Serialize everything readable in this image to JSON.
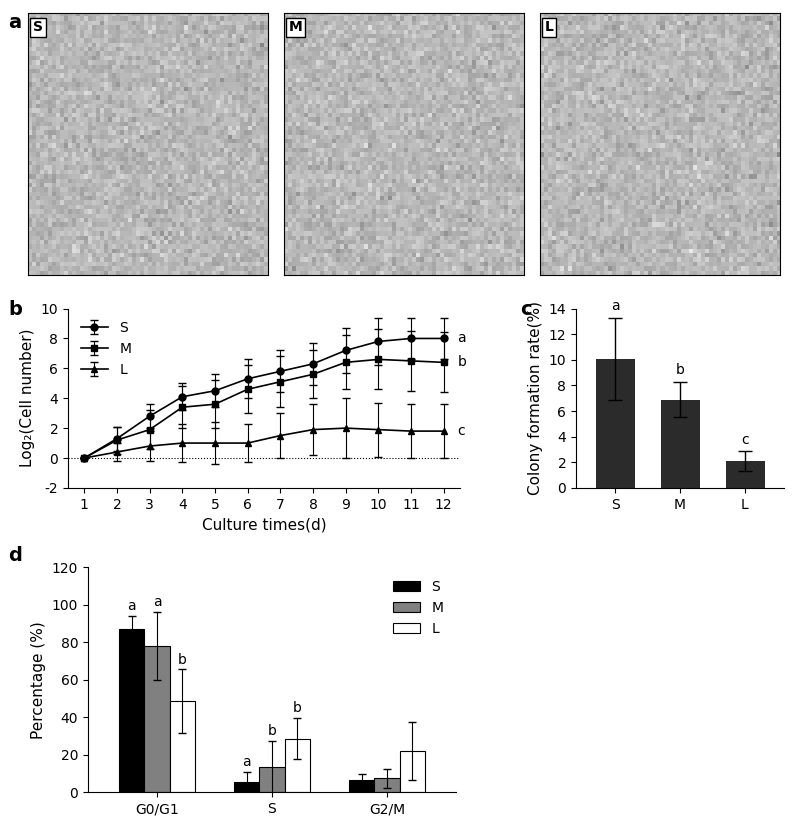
{
  "chart_data": [
    {
      "type": "image",
      "panel": "a",
      "images": [
        "S",
        "M",
        "L"
      ]
    },
    {
      "type": "line",
      "panel": "b",
      "x_label": "Culture times(d)",
      "y_label": "Log₂(Cell number)",
      "x": [
        1,
        2,
        3,
        4,
        5,
        6,
        7,
        8,
        9,
        10,
        11,
        12
      ],
      "series": [
        {
          "name": "S",
          "color": "#000000",
          "marker": "o",
          "annotation": "a",
          "values": [
            0,
            1.3,
            2.8,
            4.1,
            4.5,
            5.3,
            5.8,
            6.3,
            7.2,
            7.8,
            8.0,
            8.0
          ],
          "errors": [
            0,
            0.8,
            0.8,
            0.9,
            1.1,
            1.3,
            1.4,
            1.4,
            1.5,
            1.6,
            1.4,
            1.4
          ]
        },
        {
          "name": "M",
          "color": "#000000",
          "marker": "s",
          "annotation": "b",
          "values": [
            0,
            1.2,
            1.9,
            3.4,
            3.6,
            4.6,
            5.1,
            5.6,
            6.4,
            6.6,
            6.5,
            6.4
          ],
          "errors": [
            0,
            0.9,
            1.3,
            1.4,
            1.6,
            1.6,
            1.7,
            1.6,
            1.8,
            2.0,
            2.0,
            2.0
          ]
        },
        {
          "name": "L",
          "color": "#000000",
          "marker": "^",
          "annotation": "c",
          "values": [
            0,
            0.4,
            0.8,
            1.0,
            1.0,
            1.0,
            1.5,
            1.9,
            2.0,
            1.9,
            1.8,
            1.8
          ],
          "errors": [
            0,
            0.6,
            1.0,
            1.3,
            1.4,
            1.3,
            1.5,
            1.7,
            2.0,
            1.8,
            1.8,
            1.8
          ]
        }
      ],
      "xlim": [
        0.5,
        12.5
      ],
      "xticks": [
        1,
        2,
        3,
        4,
        5,
        6,
        7,
        8,
        9,
        10,
        11,
        12
      ],
      "ylim": [
        -2,
        10
      ],
      "yticks": [
        -2,
        0,
        2,
        4,
        6,
        8,
        10
      ],
      "legend": "upper left"
    },
    {
      "type": "bar",
      "panel": "c",
      "y_label": "Colony formation rate(%)",
      "categories": [
        "S",
        "M",
        "L"
      ],
      "values": [
        10.1,
        6.9,
        2.1
      ],
      "errors": [
        3.2,
        1.4,
        0.8
      ],
      "annotations": [
        "a",
        "b",
        "c"
      ],
      "color": "#2b2b2b",
      "ylim": [
        0,
        14
      ],
      "yticks": [
        0,
        2,
        4,
        6,
        8,
        10,
        12,
        14
      ]
    },
    {
      "type": "grouped_bar",
      "panel": "d",
      "y_label": "Percentage (%)",
      "categories": [
        "G0/G1",
        "S",
        "G2/M"
      ],
      "series": [
        {
          "name": "S",
          "color": "#000000",
          "values": [
            87,
            5.5,
            6.5
          ],
          "errors": [
            7,
            5.5,
            3
          ],
          "annotations": [
            "a",
            "a",
            null
          ]
        },
        {
          "name": "M",
          "color": "#808080",
          "values": [
            78,
            13.5,
            7.5
          ],
          "errors": [
            18,
            14,
            5
          ],
          "annotations": [
            "a",
            "b",
            null
          ]
        },
        {
          "name": "L",
          "color": "#ffffff",
          "values": [
            48.5,
            28.5,
            22
          ],
          "errors": [
            17,
            11,
            15.5
          ],
          "annotations": [
            "b",
            "b",
            null
          ]
        }
      ],
      "ylim": [
        0,
        120
      ],
      "yticks": [
        0,
        20,
        40,
        60,
        80,
        100,
        120
      ],
      "legend": "upper right"
    }
  ]
}
